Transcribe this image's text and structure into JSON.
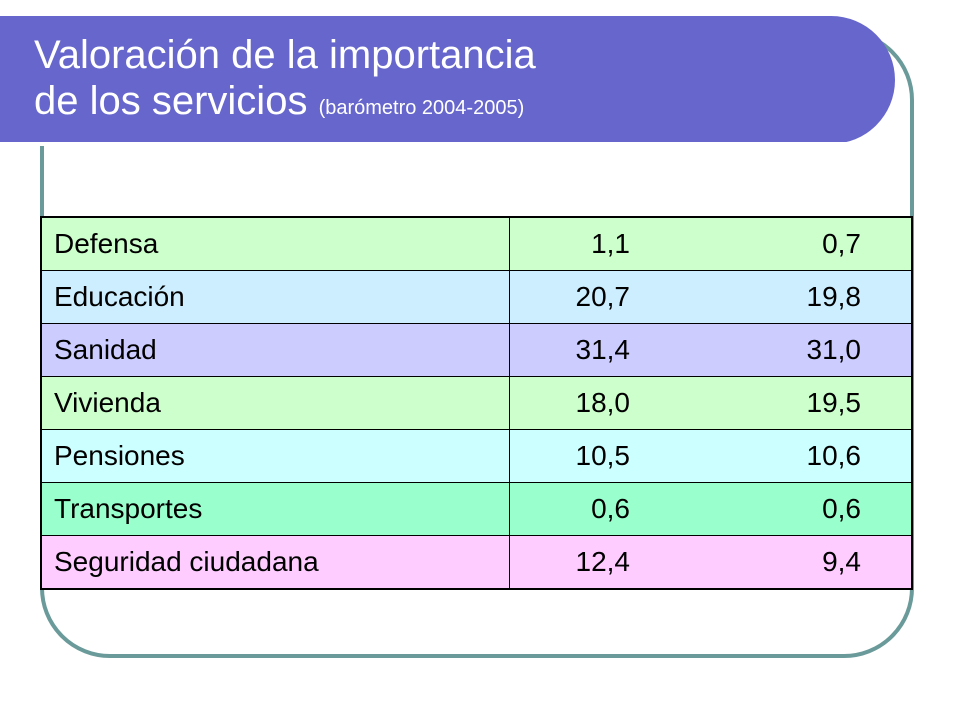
{
  "title": {
    "line1": "Valoración de la importancia",
    "line2": "de los servicios",
    "subtitle": "(barómetro 2004-2005)"
  },
  "colors": {
    "title_bar": "#6666cc",
    "frame_border": "#6a9a9a",
    "row_colors": [
      "#ccffcc",
      "#cceeff",
      "#ccccff",
      "#ccffcc",
      "#ccffff",
      "#99ffcc",
      "#ffccff"
    ]
  },
  "table": {
    "rows": [
      {
        "label": "Defensa",
        "v1": "1,1",
        "v2": "0,7"
      },
      {
        "label": "Educación",
        "v1": "20,7",
        "v2": "19,8"
      },
      {
        "label": "Sanidad",
        "v1": "31,4",
        "v2": "31,0"
      },
      {
        "label": "Vivienda",
        "v1": "18,0",
        "v2": "19,5"
      },
      {
        "label": "Pensiones",
        "v1": "10,5",
        "v2": "10,6"
      },
      {
        "label": "Transportes",
        "v1": "0,6",
        "v2": "0,6"
      },
      {
        "label": "Seguridad ciudadana",
        "v1": "12,4",
        "v2": "9,4"
      }
    ]
  }
}
